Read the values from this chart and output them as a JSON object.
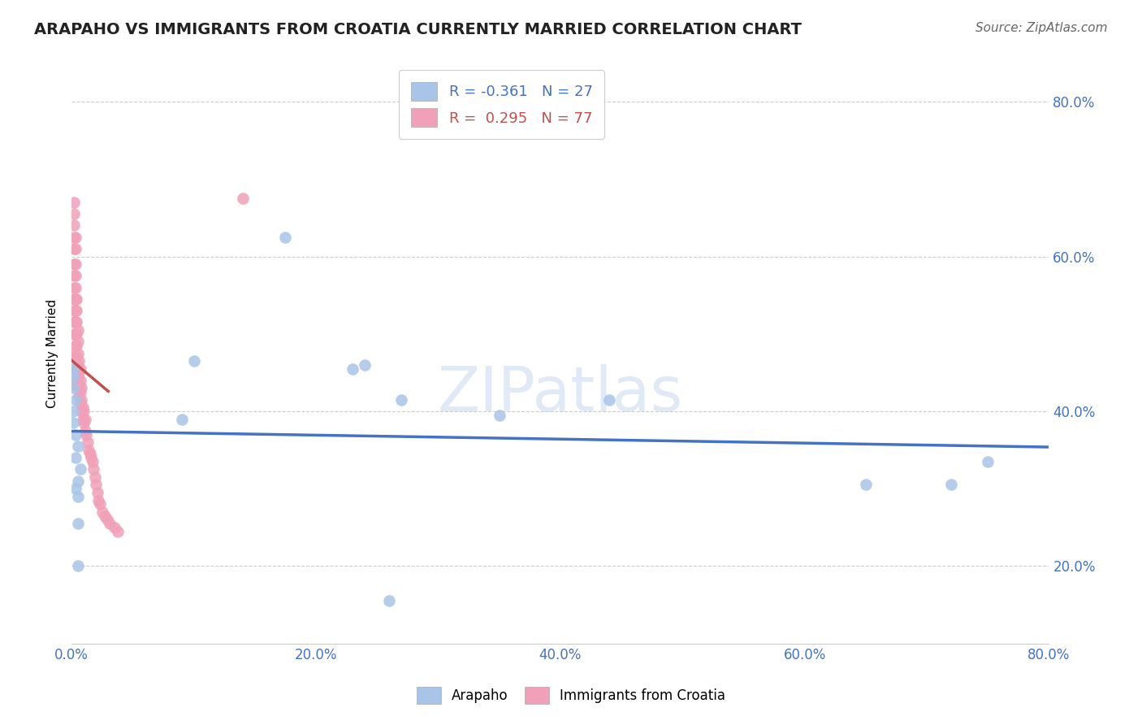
{
  "title": "ARAPAHO VS IMMIGRANTS FROM CROATIA CURRENTLY MARRIED CORRELATION CHART",
  "source": "Source: ZipAtlas.com",
  "ylabel": "Currently Married",
  "watermark": "ZIPatlas",
  "arapaho_R": -0.361,
  "arapaho_N": 27,
  "croatia_R": 0.295,
  "croatia_N": 77,
  "arapaho_color": "#a8c4e8",
  "croatia_color": "#f0a0b8",
  "arapaho_line_color": "#4472c4",
  "croatia_line_color": "#c0504d",
  "arapaho_points_x": [
    0.005,
    0.005,
    0.005,
    0.003,
    0.005,
    0.007,
    0.003,
    0.005,
    0.003,
    0.001,
    0.001,
    0.003,
    0.001,
    0.001,
    0.001,
    0.09,
    0.1,
    0.175,
    0.23,
    0.24,
    0.26,
    0.27,
    0.35,
    0.44,
    0.65,
    0.72,
    0.75
  ],
  "arapaho_points_y": [
    0.2,
    0.255,
    0.29,
    0.3,
    0.31,
    0.325,
    0.34,
    0.355,
    0.37,
    0.385,
    0.4,
    0.415,
    0.43,
    0.445,
    0.455,
    0.39,
    0.465,
    0.625,
    0.455,
    0.46,
    0.155,
    0.415,
    0.395,
    0.415,
    0.305,
    0.305,
    0.335
  ],
  "croatia_points_x": [
    0.001,
    0.001,
    0.001,
    0.002,
    0.002,
    0.002,
    0.002,
    0.002,
    0.002,
    0.002,
    0.002,
    0.002,
    0.002,
    0.002,
    0.002,
    0.003,
    0.003,
    0.003,
    0.003,
    0.003,
    0.003,
    0.003,
    0.003,
    0.003,
    0.003,
    0.003,
    0.003,
    0.004,
    0.004,
    0.004,
    0.004,
    0.004,
    0.004,
    0.004,
    0.004,
    0.005,
    0.005,
    0.005,
    0.005,
    0.005,
    0.005,
    0.006,
    0.006,
    0.006,
    0.006,
    0.007,
    0.007,
    0.007,
    0.007,
    0.008,
    0.008,
    0.008,
    0.009,
    0.009,
    0.01,
    0.01,
    0.011,
    0.011,
    0.012,
    0.013,
    0.014,
    0.015,
    0.016,
    0.017,
    0.018,
    0.019,
    0.02,
    0.021,
    0.022,
    0.023,
    0.025,
    0.027,
    0.029,
    0.031,
    0.035,
    0.038,
    0.14
  ],
  "croatia_points_y": [
    0.435,
    0.455,
    0.475,
    0.5,
    0.515,
    0.53,
    0.545,
    0.56,
    0.575,
    0.59,
    0.61,
    0.625,
    0.64,
    0.655,
    0.67,
    0.455,
    0.47,
    0.485,
    0.5,
    0.515,
    0.53,
    0.545,
    0.56,
    0.575,
    0.59,
    0.61,
    0.625,
    0.44,
    0.455,
    0.47,
    0.485,
    0.5,
    0.515,
    0.53,
    0.545,
    0.43,
    0.445,
    0.46,
    0.475,
    0.49,
    0.505,
    0.42,
    0.435,
    0.45,
    0.465,
    0.41,
    0.425,
    0.44,
    0.455,
    0.4,
    0.415,
    0.43,
    0.39,
    0.405,
    0.385,
    0.4,
    0.375,
    0.39,
    0.37,
    0.36,
    0.35,
    0.345,
    0.34,
    0.335,
    0.325,
    0.315,
    0.305,
    0.295,
    0.285,
    0.28,
    0.27,
    0.265,
    0.26,
    0.255,
    0.25,
    0.245,
    0.675
  ],
  "xlim": [
    0.0,
    0.8
  ],
  "ylim": [
    0.1,
    0.85
  ],
  "x_ticks": [
    0.0,
    0.2,
    0.4,
    0.6,
    0.8
  ],
  "x_tick_labels": [
    "0.0%",
    "20.0%",
    "40.0%",
    "60.0%",
    "80.0%"
  ],
  "y_ticks_right": [
    0.2,
    0.4,
    0.6,
    0.8
  ],
  "y_tick_labels_right": [
    "20.0%",
    "40.0%",
    "60.0%",
    "80.0%"
  ],
  "grid_color": "#cccccc",
  "background_color": "#ffffff",
  "title_fontsize": 14,
  "axis_label_fontsize": 11,
  "tick_fontsize": 12,
  "legend_fontsize": 13,
  "source_fontsize": 11
}
